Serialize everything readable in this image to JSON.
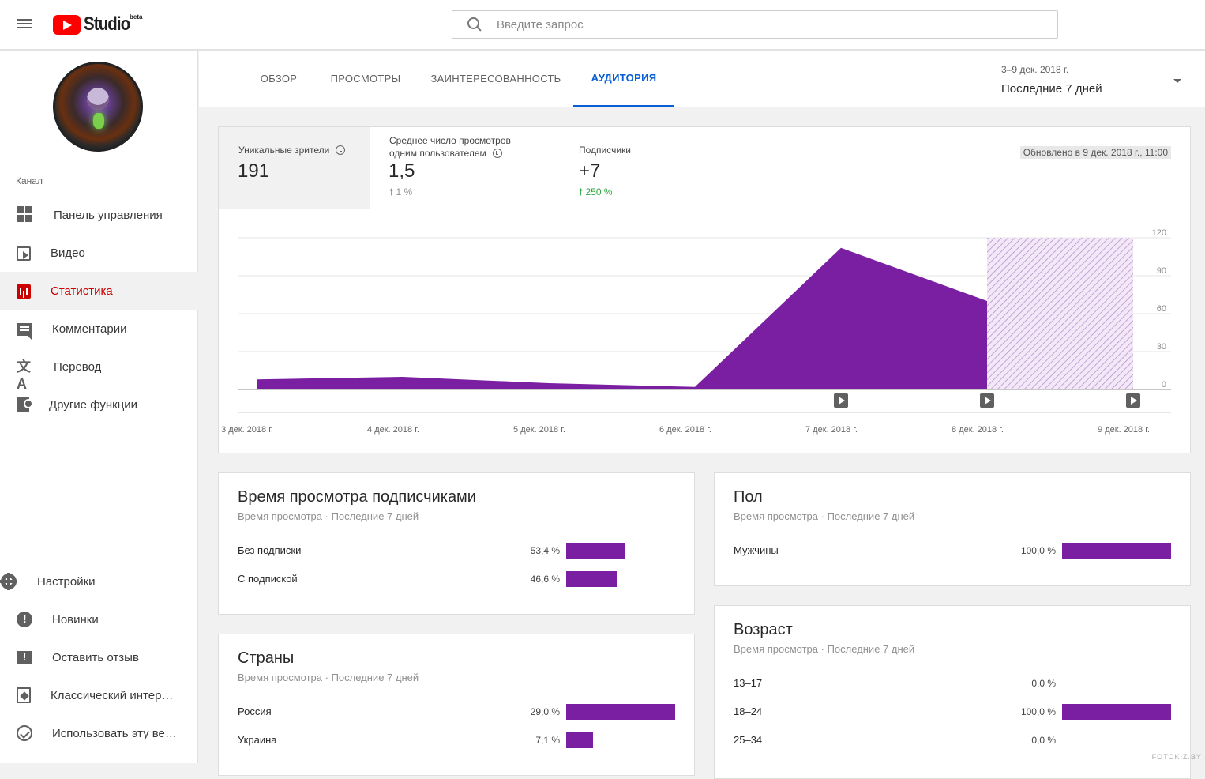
{
  "header": {
    "logo_text": "Studio",
    "logo_badge": "beta",
    "search_placeholder": "Введите запрос"
  },
  "sidebar": {
    "section_label": "Канал",
    "items": [
      {
        "label": "Панель управления",
        "icon": "dashboard-icon"
      },
      {
        "label": "Видео",
        "icon": "video-icon"
      },
      {
        "label": "Статистика",
        "icon": "analytics-icon",
        "active": true
      },
      {
        "label": "Комментарии",
        "icon": "comments-icon"
      },
      {
        "label": "Перевод",
        "icon": "translate-icon"
      },
      {
        "label": "Другие функции",
        "icon": "other-features-icon"
      }
    ],
    "bottom_items": [
      {
        "label": "Настройки",
        "icon": "gear-icon"
      },
      {
        "label": "Новинки",
        "icon": "whats-new-icon"
      },
      {
        "label": "Оставить отзыв",
        "icon": "feedback-icon"
      },
      {
        "label": "Классический интер…",
        "icon": "classic-icon"
      },
      {
        "label": "Использовать эту ве…",
        "icon": "check-icon"
      }
    ]
  },
  "tabs": [
    {
      "label": "ОБЗОР"
    },
    {
      "label": "ПРОСМОТРЫ"
    },
    {
      "label": "ЗАИНТЕРЕСОВАННОСТЬ"
    },
    {
      "label": "АУДИТОРИЯ",
      "active": true
    }
  ],
  "date_picker": {
    "range": "3–9 дек. 2018 г.",
    "label": "Последние 7 дней"
  },
  "kpis": [
    {
      "label": "Уникальные зрители",
      "value": "191",
      "delta": ""
    },
    {
      "label_line1": "Среднее число просмотров",
      "label_line2": "одним пользователем",
      "value": "1,5",
      "delta": "1 %"
    },
    {
      "label": "Подписчики",
      "value": "+7",
      "delta": "250 %"
    }
  ],
  "updated": "Обновлено в 9 дек. 2018 г., 11:00",
  "chart_data": {
    "type": "area",
    "x": [
      "3 дек. 2018 г.",
      "4 дек. 2018 г.",
      "5 дек. 2018 г.",
      "6 дек. 2018 г.",
      "7 дек. 2018 г.",
      "8 дек. 2018 г.",
      "9 дек. 2018 г."
    ],
    "y_ticks": [
      "0",
      "30",
      "60",
      "90",
      "120"
    ],
    "ylim": [
      0,
      120
    ],
    "series": [
      {
        "values": [
          8,
          10,
          5,
          2,
          112,
          70,
          null
        ],
        "color": "#7b1fa2"
      }
    ],
    "projected_range": [
      "8 дек. 2018 г.",
      "9 дек. 2018 г."
    ],
    "video_markers": [
      "7 дек. 2018 г.",
      "8 дек. 2018 г.",
      "9 дек. 2018 г."
    ]
  },
  "subscribers_watch": {
    "title": "Время просмотра подписчиками",
    "subtitle": "Время просмотра · Последние 7 дней",
    "rows": [
      {
        "label": "Без подписки",
        "value": "53,4 %",
        "pct": 53.4
      },
      {
        "label": "С подпиской",
        "value": "46,6 %",
        "pct": 46.6
      }
    ]
  },
  "gender": {
    "title": "Пол",
    "subtitle": "Время просмотра · Последние 7 дней",
    "rows": [
      {
        "label": "Мужчины",
        "value": "100,0 %",
        "pct": 100
      }
    ]
  },
  "countries": {
    "title": "Страны",
    "subtitle": "Время просмотра · Последние 7 дней",
    "rows": [
      {
        "label": "Россия",
        "value": "29,0 %",
        "pct": 29.0
      },
      {
        "label": "Украина",
        "value": "7,1 %",
        "pct": 7.1
      }
    ]
  },
  "age": {
    "title": "Возраст",
    "subtitle": "Время просмотра · Последние 7 дней",
    "rows": [
      {
        "label": "13–17",
        "value": "0,0 %",
        "pct": 0
      },
      {
        "label": "18–24",
        "value": "100,0 %",
        "pct": 100
      },
      {
        "label": "25–34",
        "value": "0,0 %",
        "pct": 0
      }
    ]
  },
  "watermark": "FOTOKIZ.BY",
  "colors": {
    "accent": "#065fd4",
    "bar": "#7b1fa2",
    "active_nav": "#cc0000"
  }
}
